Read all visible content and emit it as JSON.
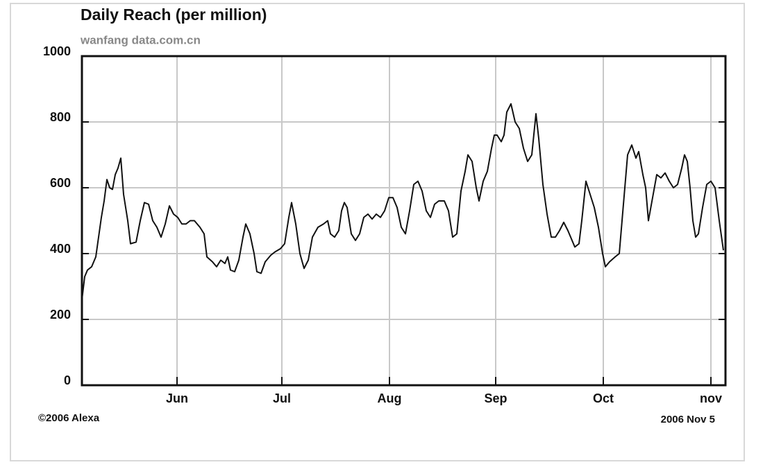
{
  "chart_data": {
    "type": "line",
    "title": "Daily Reach (per million)",
    "subtitle": "wanfang data.com.cn",
    "footer_left": "©2006 Alexa",
    "footer_right": "2006 Nov 5",
    "grid": true,
    "xlim": [
      0,
      185.4
    ],
    "xticks": [
      {
        "value": 27.4,
        "label": "Jun"
      },
      {
        "value": 57.6,
        "label": "Jul"
      },
      {
        "value": 88.6,
        "label": "Aug"
      },
      {
        "value": 119.2,
        "label": "Sep"
      },
      {
        "value": 150.2,
        "label": "Oct"
      },
      {
        "value": 181.2,
        "label": "nov"
      }
    ],
    "ylim": [
      0,
      1000
    ],
    "yticks": [
      0,
      200,
      400,
      600,
      800,
      1000
    ],
    "x": [
      0,
      0.8,
      1.6,
      2.8,
      4,
      4.8,
      5.6,
      6.4,
      7.2,
      8,
      8.8,
      9.6,
      10.4,
      11.2,
      12,
      13.2,
      14,
      15.6,
      16.8,
      18,
      19.2,
      20.4,
      21.6,
      22.8,
      24,
      25.2,
      26.4,
      27.6,
      28.8,
      30,
      31.2,
      32.4,
      34,
      35.2,
      36,
      37.6,
      38.8,
      40,
      41.2,
      42,
      42.8,
      44,
      45.2,
      46.4,
      47.2,
      48.4,
      49.6,
      50.4,
      51.6,
      52.8,
      54.4,
      55.6,
      57.2,
      58.4,
      59.6,
      60.4,
      61.6,
      62.8,
      64,
      65.2,
      66.4,
      68,
      69.6,
      70.8,
      71.6,
      72.8,
      74,
      74.8,
      75.6,
      76.4,
      77.6,
      78.8,
      80,
      81.2,
      82.4,
      83.6,
      84.8,
      86,
      87.2,
      88.4,
      89.6,
      90.8,
      92,
      93.2,
      94.4,
      95.6,
      96.8,
      98,
      99.2,
      100.4,
      101.6,
      102.8,
      104.4,
      105.6,
      106.8,
      108,
      109.2,
      110.4,
      111.2,
      112.4,
      113.6,
      114.4,
      115.6,
      116.8,
      118,
      118.8,
      119.6,
      120.8,
      121.6,
      122.4,
      123.6,
      124.8,
      126,
      127.2,
      128.4,
      129.6,
      130.8,
      131.6,
      132.8,
      134,
      135.2,
      136.4,
      137.6,
      138.8,
      140,
      141.2,
      142,
      143.2,
      144,
      145.2,
      146.4,
      147.6,
      148.8,
      150,
      150.8,
      152,
      153.6,
      154.8,
      156,
      157.2,
      158.4,
      159.6,
      160.4,
      161.6,
      162.4,
      163.2,
      164.4,
      165.6,
      166.8,
      168,
      169.2,
      170.4,
      171.6,
      172.8,
      173.6,
      174.4,
      175.2,
      176,
      176.8,
      177.6,
      178.8,
      180,
      181.2,
      182.4,
      183.6,
      184.8
    ],
    "series": [
      {
        "color": "#111111",
        "values": [
          260,
          330,
          350,
          360,
          390,
          450,
          510,
          560,
          625,
          600,
          595,
          640,
          660,
          690,
          580,
          500,
          430,
          435,
          500,
          555,
          550,
          500,
          480,
          450,
          490,
          545,
          520,
          510,
          490,
          490,
          500,
          500,
          480,
          460,
          390,
          375,
          360,
          380,
          370,
          390,
          350,
          345,
          380,
          450,
          490,
          460,
          400,
          345,
          340,
          375,
          395,
          405,
          415,
          430,
          510,
          555,
          490,
          400,
          355,
          380,
          450,
          480,
          490,
          500,
          460,
          450,
          470,
          530,
          555,
          540,
          460,
          440,
          460,
          510,
          520,
          505,
          520,
          510,
          530,
          570,
          570,
          540,
          480,
          460,
          530,
          610,
          620,
          590,
          530,
          510,
          550,
          560,
          560,
          530,
          450,
          460,
          590,
          650,
          700,
          680,
          600,
          560,
          620,
          650,
          720,
          760,
          760,
          740,
          760,
          830,
          855,
          800,
          780,
          720,
          680,
          700,
          825,
          750,
          610,
          520,
          450,
          450,
          470,
          495,
          470,
          440,
          420,
          430,
          500,
          620,
          580,
          540,
          480,
          400,
          360,
          375,
          390,
          400,
          550,
          700,
          730,
          690,
          710,
          640,
          600,
          500,
          570,
          640,
          630,
          645,
          620,
          600,
          610,
          660,
          700,
          680,
          600,
          500,
          450,
          460,
          540,
          610,
          620,
          600,
          500,
          410
        ]
      }
    ]
  }
}
